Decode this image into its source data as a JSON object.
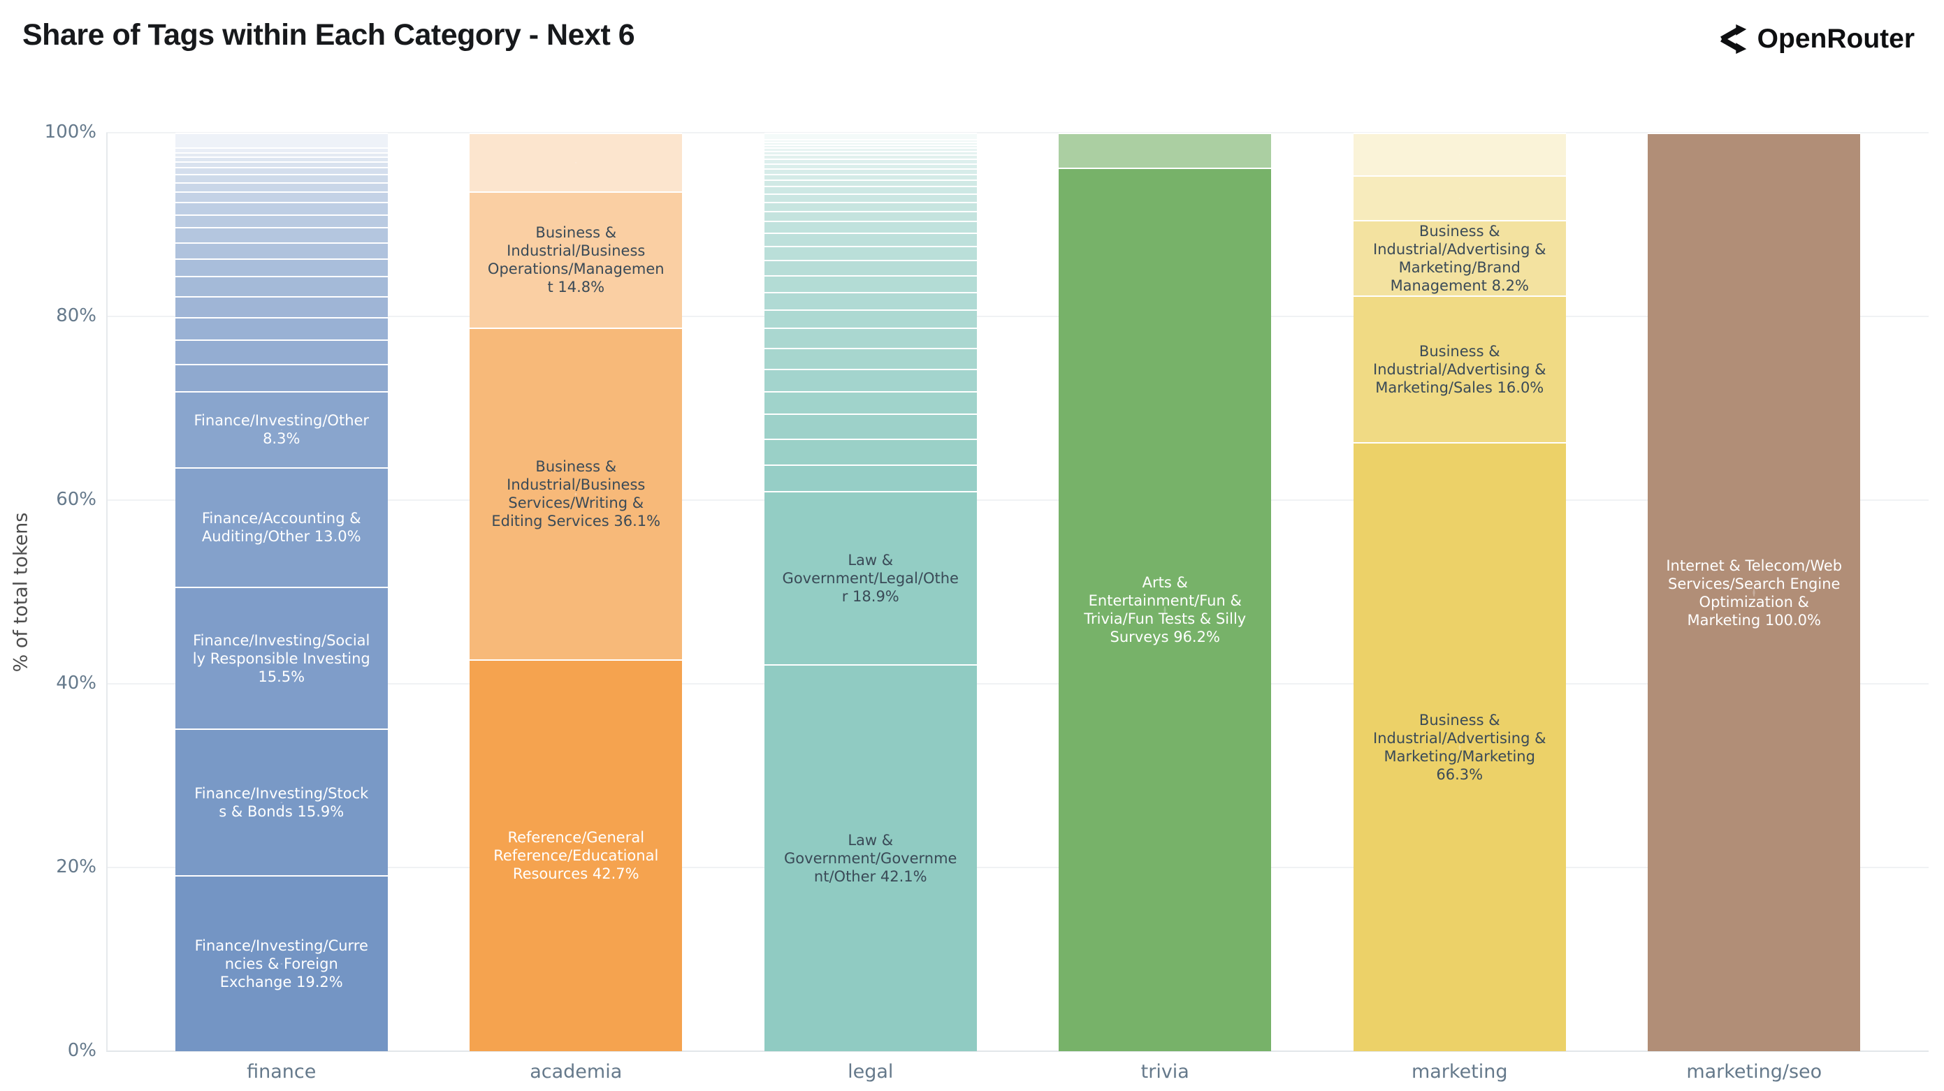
{
  "header": {
    "title": "Share of Tags within Each Category - Next 6",
    "brand": {
      "name": "OpenRouter"
    }
  },
  "axes": {
    "y_title": "% of total tokens",
    "y_ticks": [
      {
        "value": 0,
        "label": "0%"
      },
      {
        "value": 20,
        "label": "20%"
      },
      {
        "value": 40,
        "label": "40%"
      },
      {
        "value": 60,
        "label": "60%"
      },
      {
        "value": 80,
        "label": "80%"
      },
      {
        "value": 100,
        "label": "100%"
      }
    ]
  },
  "colors": {
    "label_dark": "#3a4a57",
    "label_light": "#ffffff",
    "grid": "#f0f2f4",
    "axis_line": "#e6e9ec",
    "tick_text": "#65798b",
    "title_text": "#17191c"
  },
  "chart_data": {
    "type": "bar",
    "stacked": true,
    "normalized_percent": true,
    "title": "Share of Tags within Each Category - Next 6",
    "xlabel": "",
    "ylabel": "% of total tokens",
    "ylim": [
      0,
      100
    ],
    "grid": "horizontal",
    "legend_position": "none",
    "categories": [
      "finance",
      "academia",
      "legal",
      "trivia",
      "marketing",
      "marketing/seo"
    ],
    "bars": [
      {
        "category": "finance",
        "base_color": "#7495c4",
        "fade_top": 0.88,
        "segments": [
          {
            "value": 19.2,
            "label": "Finance/Investing/Currencies & Foreign Exchange 19.2%",
            "tone": "light"
          },
          {
            "value": 15.9,
            "label": "Finance/Investing/Stocks & Bonds 15.9%",
            "tone": "light"
          },
          {
            "value": 15.5,
            "label": "Finance/Investing/Socially Responsible Investing 15.5%",
            "tone": "light"
          },
          {
            "value": 13.0,
            "label": "Finance/Accounting & Auditing/Other 13.0%",
            "tone": "light"
          },
          {
            "value": 8.3,
            "label": "Finance/Investing/Other 8.3%",
            "tone": "light"
          },
          {
            "value": 2.9
          },
          {
            "value": 2.7
          },
          {
            "value": 2.4
          },
          {
            "value": 2.3
          },
          {
            "value": 2.2
          },
          {
            "value": 1.9
          },
          {
            "value": 1.8
          },
          {
            "value": 1.65
          },
          {
            "value": 1.4
          },
          {
            "value": 1.3
          },
          {
            "value": 1.15
          },
          {
            "value": 1.0
          },
          {
            "value": 0.9
          },
          {
            "value": 0.75
          },
          {
            "value": 0.65
          },
          {
            "value": 0.5
          },
          {
            "value": 0.5
          },
          {
            "value": 0.5
          },
          {
            "value": 1.6
          }
        ]
      },
      {
        "category": "academia",
        "base_color": "#f5a34f",
        "fade_top": 0.72,
        "segments": [
          {
            "value": 42.7,
            "label": "Reference/General Reference/Educational Resources 42.7%",
            "tone": "light"
          },
          {
            "value": 36.1,
            "label": "Business & Industrial/Business Services/Writing & Editing Services 36.1%",
            "tone": "dark"
          },
          {
            "value": 14.8,
            "label": "Business & Industrial/Business Operations/Management 14.8%",
            "tone": "dark"
          },
          {
            "value": 6.4
          }
        ]
      },
      {
        "category": "legal",
        "base_color": "#90cbc2",
        "fade_top": 0.9,
        "segments": [
          {
            "value": 42.1,
            "label": "Law & Government/Government/Other 42.1%",
            "tone": "dark"
          },
          {
            "value": 18.9,
            "label": "Law & Government/Legal/Other 18.9%",
            "tone": "dark"
          },
          {
            "value": 2.9
          },
          {
            "value": 2.8
          },
          {
            "value": 2.7
          },
          {
            "value": 2.5
          },
          {
            "value": 2.4
          },
          {
            "value": 2.3
          },
          {
            "value": 2.2
          },
          {
            "value": 2.0
          },
          {
            "value": 1.9
          },
          {
            "value": 1.8
          },
          {
            "value": 1.7
          },
          {
            "value": 1.5
          },
          {
            "value": 1.4
          },
          {
            "value": 1.3
          },
          {
            "value": 1.1
          },
          {
            "value": 1.0
          },
          {
            "value": 0.9
          },
          {
            "value": 0.8
          },
          {
            "value": 0.7
          },
          {
            "value": 0.65
          },
          {
            "value": 0.6
          },
          {
            "value": 0.55
          },
          {
            "value": 0.5
          },
          {
            "value": 0.45
          },
          {
            "value": 0.4
          },
          {
            "value": 0.35
          },
          {
            "value": 0.35
          },
          {
            "value": 0.3
          },
          {
            "value": 0.3
          },
          {
            "value": 0.65
          }
        ]
      },
      {
        "category": "trivia",
        "base_color": "#77b269",
        "fade_top": 0.38,
        "segments": [
          {
            "value": 96.2,
            "label": "Arts & Entertainment/Fun & Trivia/Fun Tests & Silly Surveys 96.2%",
            "tone": "light"
          },
          {
            "value": 3.8
          }
        ]
      },
      {
        "category": "marketing",
        "base_color": "#ecd168",
        "fade_top": 0.74,
        "segments": [
          {
            "value": 66.3,
            "label": "Business & Industrial/Advertising & Marketing/Marketing 66.3%",
            "tone": "dark"
          },
          {
            "value": 16.0,
            "label": "Business & Industrial/Advertising & Marketing/Sales 16.0%",
            "tone": "dark"
          },
          {
            "value": 8.2,
            "label": "Business & Industrial/Advertising & Marketing/Brand Management 8.2%",
            "tone": "dark"
          },
          {
            "value": 4.9
          },
          {
            "value": 4.6
          }
        ]
      },
      {
        "category": "marketing/seo",
        "base_color": "#b18e77",
        "fade_top": 0,
        "segments": [
          {
            "value": 100.0,
            "label": "Internet & Telecom/Web Services/Search Engine Optimization & Marketing 100.0%",
            "tone": "light"
          }
        ]
      }
    ]
  }
}
